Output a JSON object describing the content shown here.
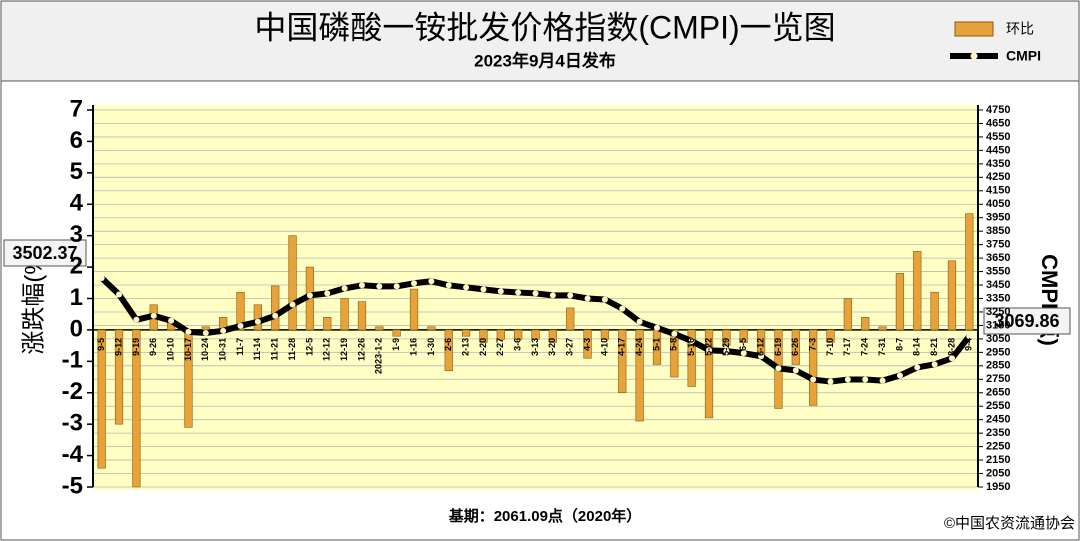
{
  "chart_data": {
    "type": "bar-line",
    "title": "中国磷酸一铵批发价格指数(CMPI)一览图",
    "subtitle": "2023年9月4日发布",
    "ylabel": "涨跌幅(%)",
    "y2label": "CMPI(点)",
    "footnote": "基期：2061.09点（2020年）",
    "source": "©中国农资流通协会",
    "categories": [
      "9-5",
      "9-12",
      "9-19",
      "9-26",
      "10-10",
      "10-17",
      "10-24",
      "10-31",
      "11-7",
      "11-14",
      "11-21",
      "11-28",
      "12-5",
      "12-12",
      "12-19",
      "12-26",
      "2023-1-2",
      "1-9",
      "1-16",
      "1-30",
      "2-6",
      "2-13",
      "2-20",
      "2-27",
      "3-6",
      "3-13",
      "3-20",
      "3-27",
      "4-3",
      "4-10",
      "4-17",
      "4-24",
      "5-1",
      "5-8",
      "5-16",
      "5-22",
      "5-29",
      "6-5",
      "6-12",
      "6-19",
      "6-26",
      "7-3",
      "7-10",
      "7-17",
      "7-24",
      "7-31",
      "8-7",
      "8-14",
      "8-21",
      "8-28",
      "9-4"
    ],
    "series": [
      {
        "name": "环比",
        "type": "bar",
        "color": "#e8a23a",
        "values": [
          -4.4,
          -3.0,
          -5.0,
          0.8,
          0.3,
          -3.1,
          0.1,
          0.4,
          1.2,
          0.8,
          1.4,
          3.0,
          2.0,
          0.4,
          1.0,
          0.9,
          0.1,
          -0.2,
          1.3,
          0.1,
          -1.3,
          -0.2,
          -0.4,
          -0.3,
          -0.3,
          -0.3,
          -0.4,
          0.7,
          -0.9,
          -0.3,
          -2.0,
          -2.9,
          -1.1,
          -1.5,
          -1.8,
          -2.8,
          -0.5,
          -0.4,
          -0.8,
          -2.5,
          -1.1,
          -2.4,
          -0.4,
          1.0,
          0.4,
          0.1,
          1.8,
          2.5,
          1.2,
          2.2,
          3.7
        ]
      },
      {
        "name": "CMPI",
        "type": "line",
        "axis": "y2",
        "color": "#000000",
        "values": [
          3502.37,
          3380,
          3192,
          3222,
          3185,
          3102,
          3094,
          3110,
          3147,
          3177,
          3222,
          3305,
          3373,
          3388,
          3425,
          3448,
          3440,
          3440,
          3463,
          3478,
          3448,
          3433,
          3418,
          3403,
          3395,
          3388,
          3373,
          3373,
          3350,
          3343,
          3275,
          3177,
          3132,
          3087,
          3034,
          2966,
          2959,
          2944,
          2921,
          2831,
          2816,
          2748,
          2733,
          2748,
          2748,
          2740,
          2778,
          2838,
          2861,
          2906,
          3069.86
        ]
      }
    ],
    "ylim": [
      -5,
      7
    ],
    "yticks": [
      -5,
      -4,
      -3,
      -2,
      -1,
      0,
      1,
      2,
      3,
      4,
      5,
      6,
      7
    ],
    "y2lim": [
      1950,
      4750
    ],
    "y2ticks": [
      1950,
      2050,
      2150,
      2250,
      2350,
      2450,
      2550,
      2650,
      2750,
      2850,
      2950,
      3050,
      3150,
      3250,
      3350,
      3450,
      3550,
      3650,
      3750,
      3850,
      3950,
      4050,
      4150,
      4250,
      4350,
      4450,
      4550,
      4650,
      4750
    ],
    "grid": true
  }
}
